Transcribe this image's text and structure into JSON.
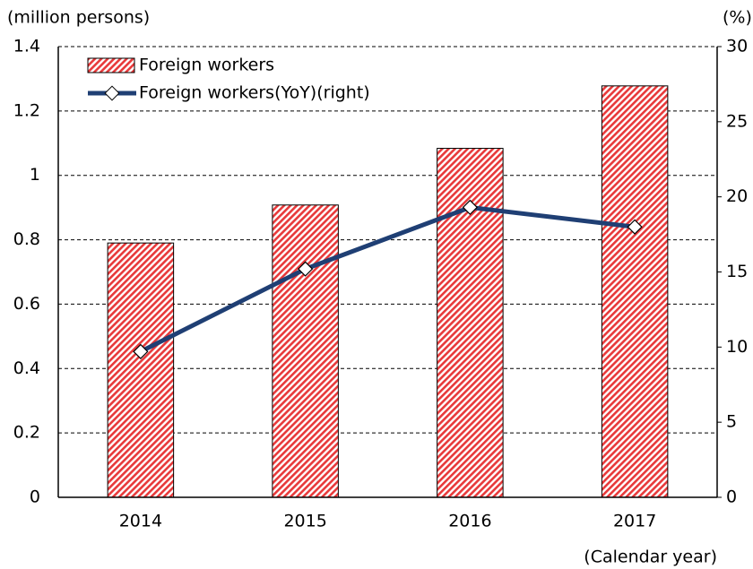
{
  "chart_data": {
    "type": "bar_line",
    "y_label": "(million persons)",
    "y2_label": "(%)",
    "x_label": "(Calendar year)",
    "categories": [
      "2014",
      "2015",
      "2016",
      "2017"
    ],
    "series": [
      {
        "name": "Foreign workers",
        "color": "#e8393a",
        "type": "bar",
        "values": [
          0.79,
          0.908,
          1.084,
          1.278
        ]
      },
      {
        "name": "Foreign workers(YoY)(right)",
        "color": "#1f3f74",
        "type": "line",
        "axis": "y2",
        "values": [
          9.7,
          15.2,
          19.3,
          18.0
        ]
      }
    ],
    "ylim": [
      0,
      1.4
    ],
    "yticks": [
      0,
      0.2,
      0.4,
      0.6,
      0.8,
      1,
      1.2,
      1.4
    ],
    "y2lim": [
      0,
      30
    ],
    "y2ticks": [
      0,
      5,
      10,
      15,
      20,
      25,
      30
    ],
    "grid": true
  }
}
